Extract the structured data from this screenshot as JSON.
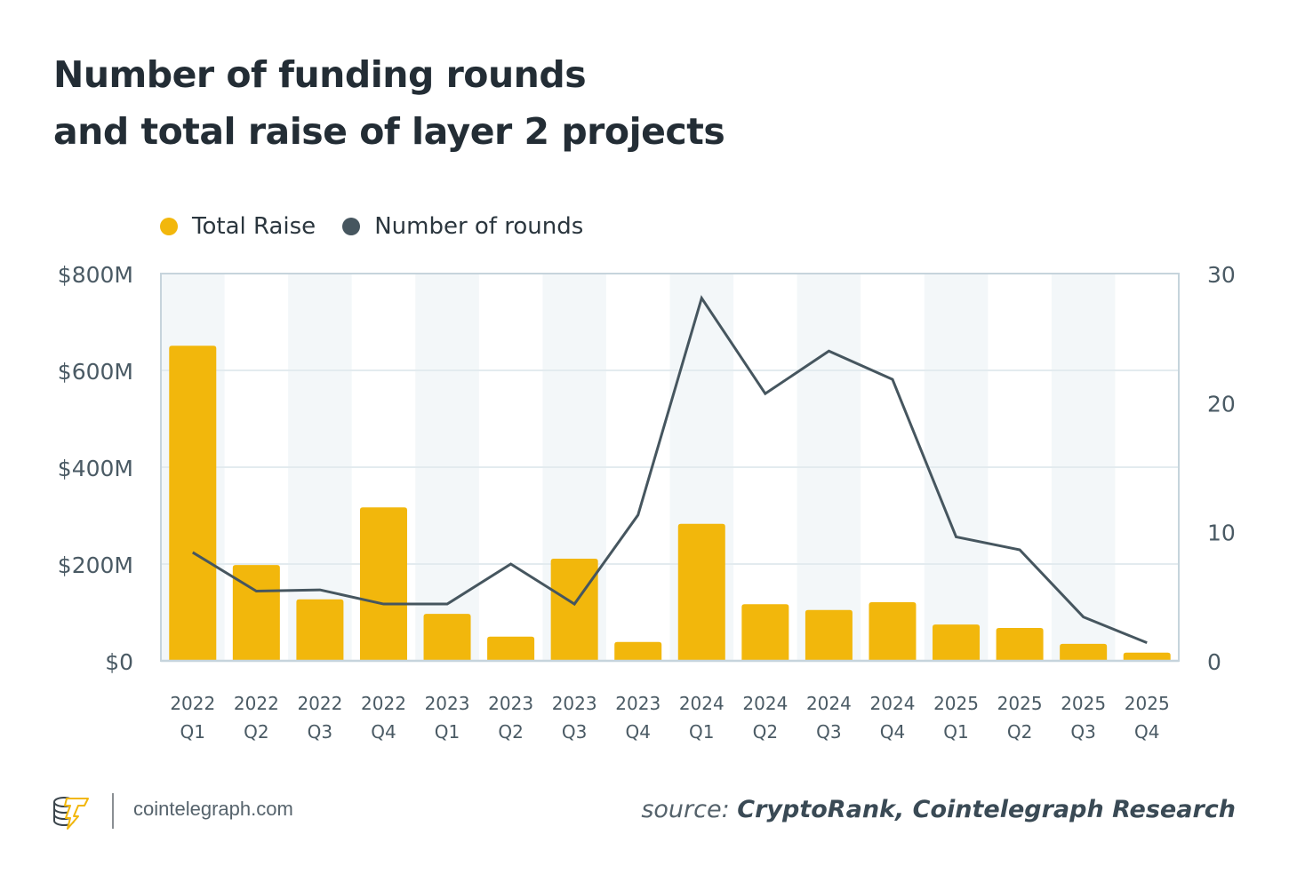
{
  "title_lines": [
    "Number of funding rounds",
    "and total raise of layer 2 projects"
  ],
  "legend": [
    {
      "label": "Total Raise",
      "color": "#f2b70c"
    },
    {
      "label": "Number of rounds",
      "color": "#46565f"
    }
  ],
  "footer": {
    "site": "cointelegraph.com",
    "source_label": "source:",
    "source_value": "CryptoRank, Cointelegraph Research"
  },
  "chart_data": {
    "type": "bar+line",
    "title": "Number of funding rounds and total raise of layer 2 projects",
    "categories": [
      [
        "2022",
        "Q1"
      ],
      [
        "2022",
        "Q2"
      ],
      [
        "2022",
        "Q3"
      ],
      [
        "2022",
        "Q4"
      ],
      [
        "2023",
        "Q1"
      ],
      [
        "2023",
        "Q2"
      ],
      [
        "2023",
        "Q3"
      ],
      [
        "2023",
        "Q4"
      ],
      [
        "2024",
        "Q1"
      ],
      [
        "2024",
        "Q2"
      ],
      [
        "2024",
        "Q3"
      ],
      [
        "2024",
        "Q4"
      ],
      [
        "2025",
        "Q1"
      ],
      [
        "2025",
        "Q2"
      ],
      [
        "2025",
        "Q3"
      ],
      [
        "2025",
        "Q4"
      ]
    ],
    "series": [
      {
        "name": "Total Raise",
        "type": "bar",
        "axis": "left",
        "unit": "$M",
        "color": "#f2b70c",
        "values": [
          651,
          198,
          127,
          317,
          97,
          50,
          211,
          39,
          283,
          117,
          105,
          121,
          75,
          68,
          35,
          17
        ]
      },
      {
        "name": "Number of rounds",
        "type": "line",
        "axis": "right",
        "color": "#46565f",
        "values": [
          8.4,
          5.4,
          5.5,
          4.4,
          4.4,
          7.5,
          4.4,
          11.3,
          28.1,
          20.7,
          24,
          21.8,
          9.6,
          8.6,
          3.4,
          1.4
        ]
      }
    ],
    "left_axis": {
      "ylim": [
        0,
        800
      ],
      "ticks": [
        0,
        200,
        400,
        600,
        800
      ],
      "tick_labels": [
        "$0",
        "$200M",
        "$400M",
        "$600M",
        "$800M"
      ]
    },
    "right_axis": {
      "ylim": [
        0,
        30
      ],
      "ticks": [
        0,
        10,
        20,
        30
      ],
      "tick_labels": [
        "0",
        "10",
        "20",
        "30"
      ]
    },
    "grid": true,
    "legend_position": "top-left"
  }
}
